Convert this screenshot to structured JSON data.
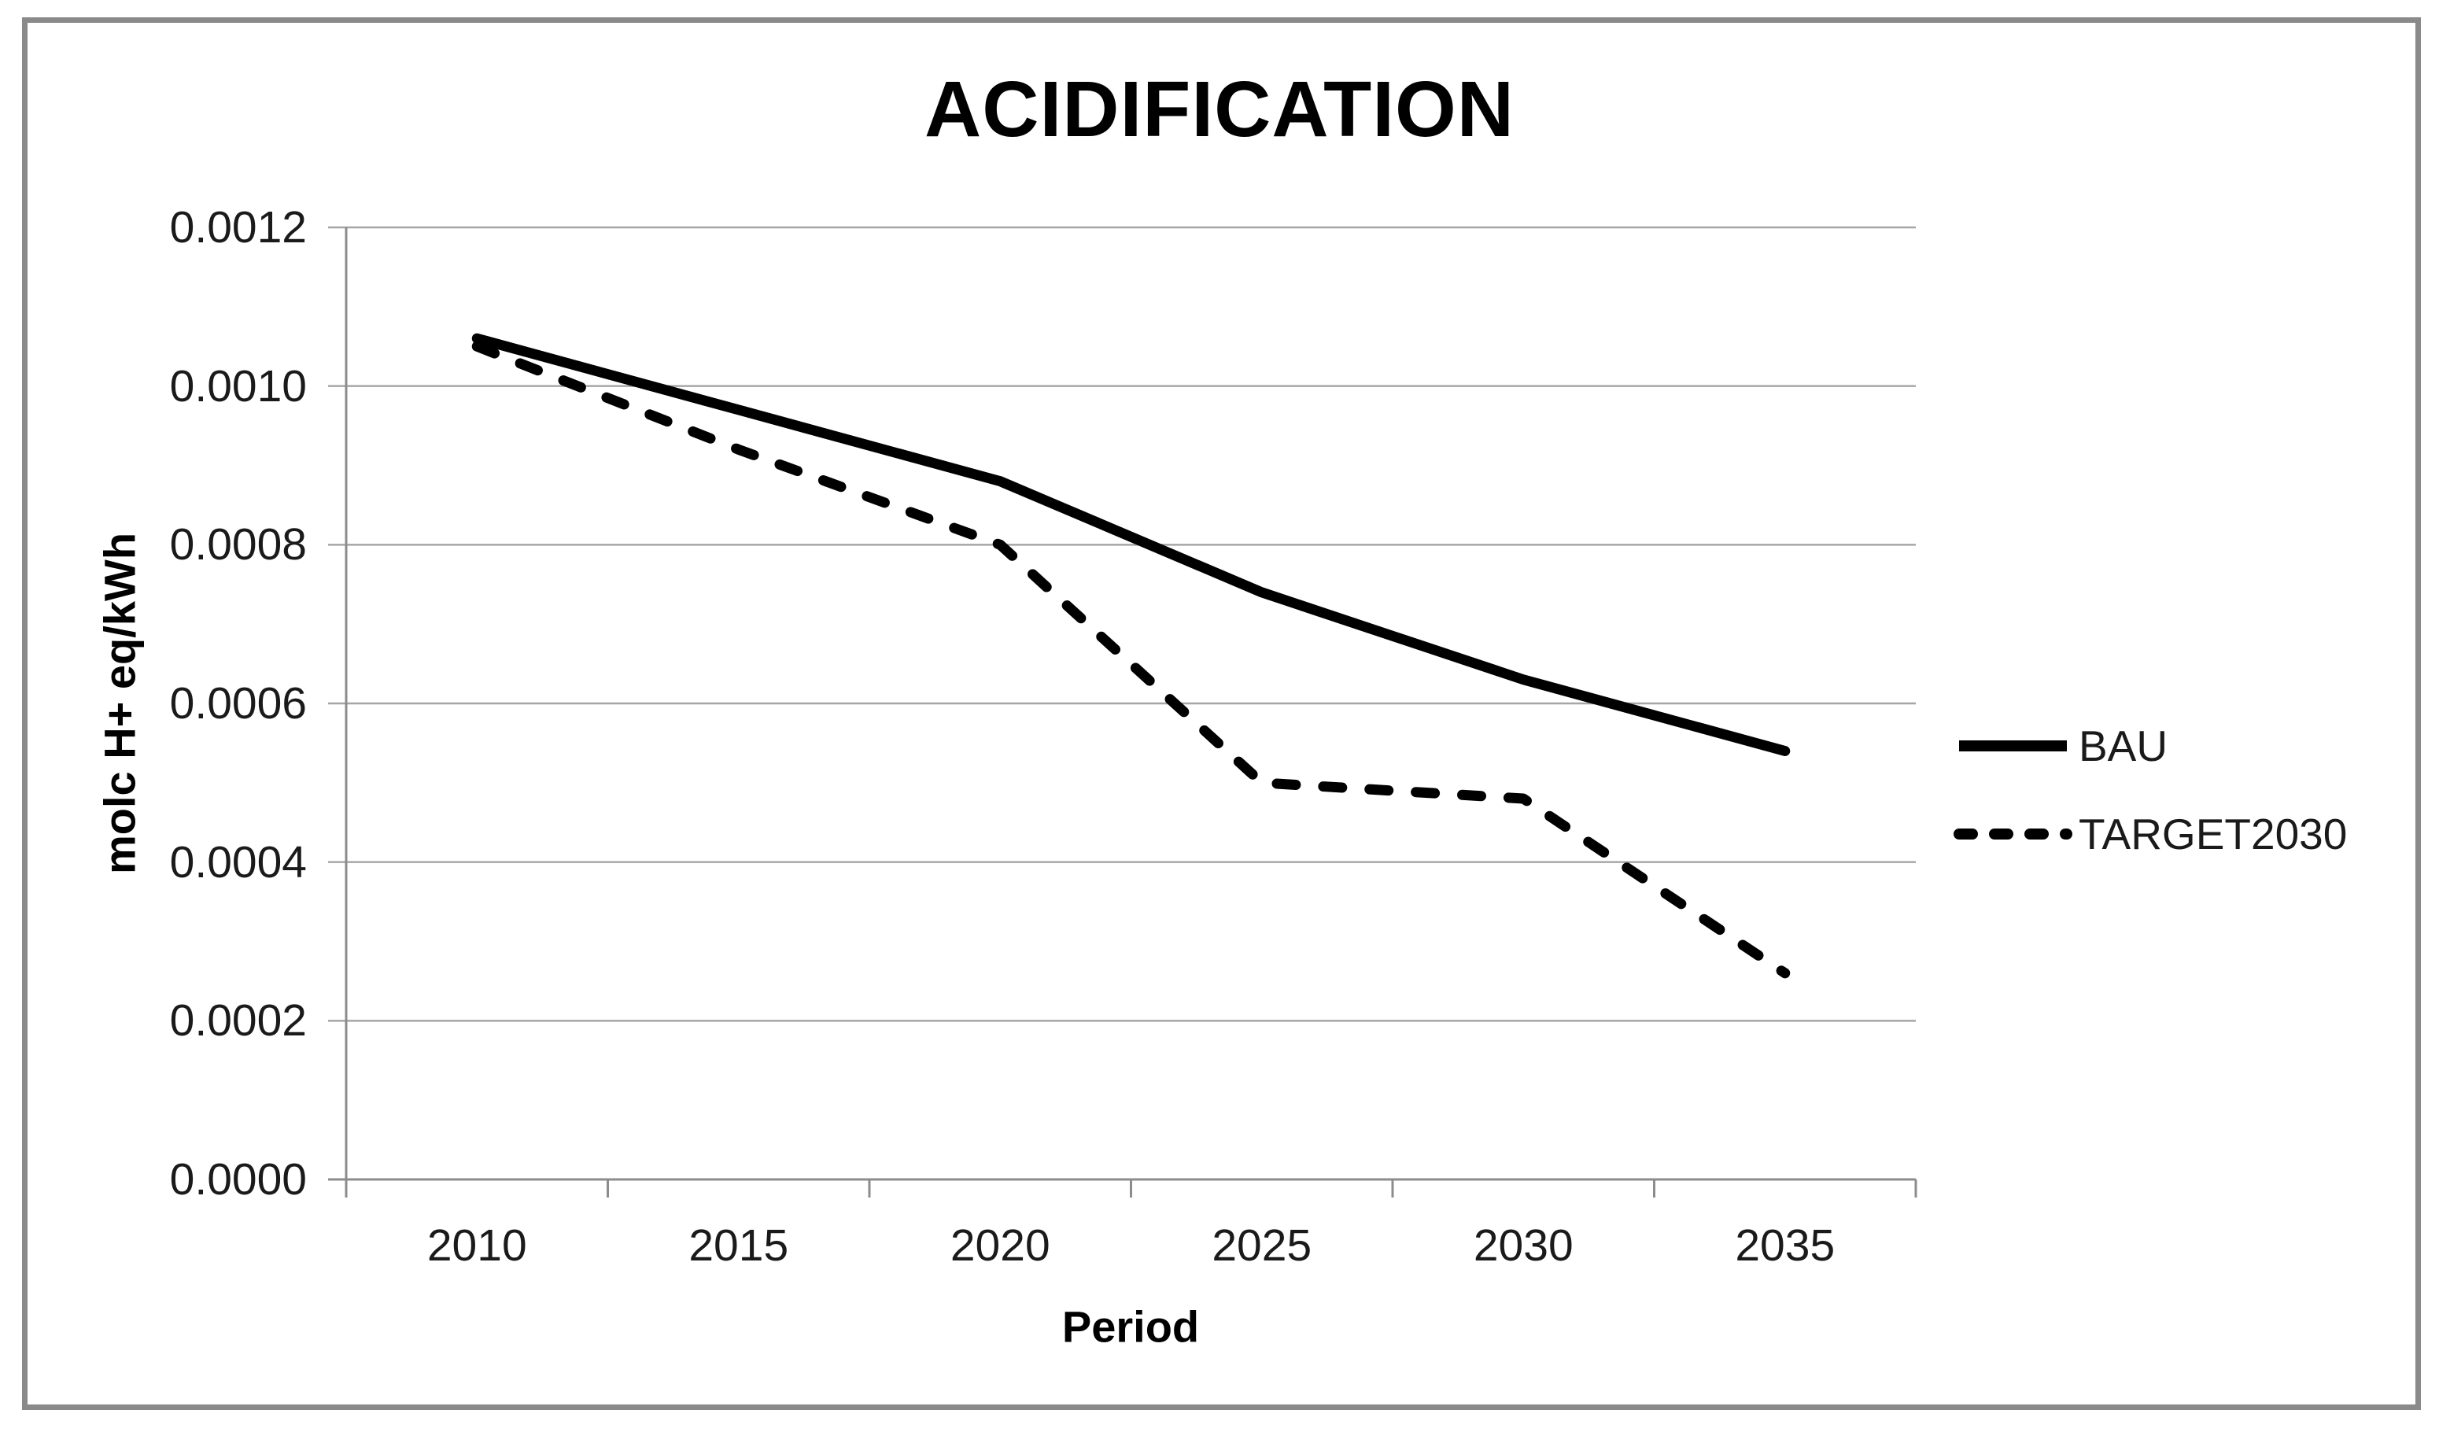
{
  "window": {
    "background_color": "#ffffff",
    "frame_border_color": "#8a8a8a"
  },
  "chart_data": {
    "type": "line",
    "title": "ACIDIFICATION",
    "xlabel": "Period",
    "ylabel": "molc H+ eq/kWh",
    "categories": [
      "2010",
      "2015",
      "2020",
      "2025",
      "2030",
      "2035"
    ],
    "y_ticks": [
      "0.0000",
      "0.0002",
      "0.0004",
      "0.0006",
      "0.0008",
      "0.0010",
      "0.0012"
    ],
    "ylim": [
      0,
      0.0012
    ],
    "grid": "horizontal",
    "legend_position": "right",
    "series": [
      {
        "name": "BAU",
        "line_style": "solid",
        "color": "#000000",
        "values": [
          0.00106,
          0.00097,
          0.00088,
          0.00074,
          0.00063,
          0.00054
        ]
      },
      {
        "name": "TARGET2030",
        "line_style": "dashed",
        "color": "#000000",
        "values": [
          0.00105,
          0.00092,
          0.0008,
          0.0005,
          0.00048,
          0.00026
        ]
      }
    ],
    "gridline_color": "#a6a6a6",
    "axis_line_color": "#8c8c8c",
    "text_color": "#1a1a1a"
  }
}
